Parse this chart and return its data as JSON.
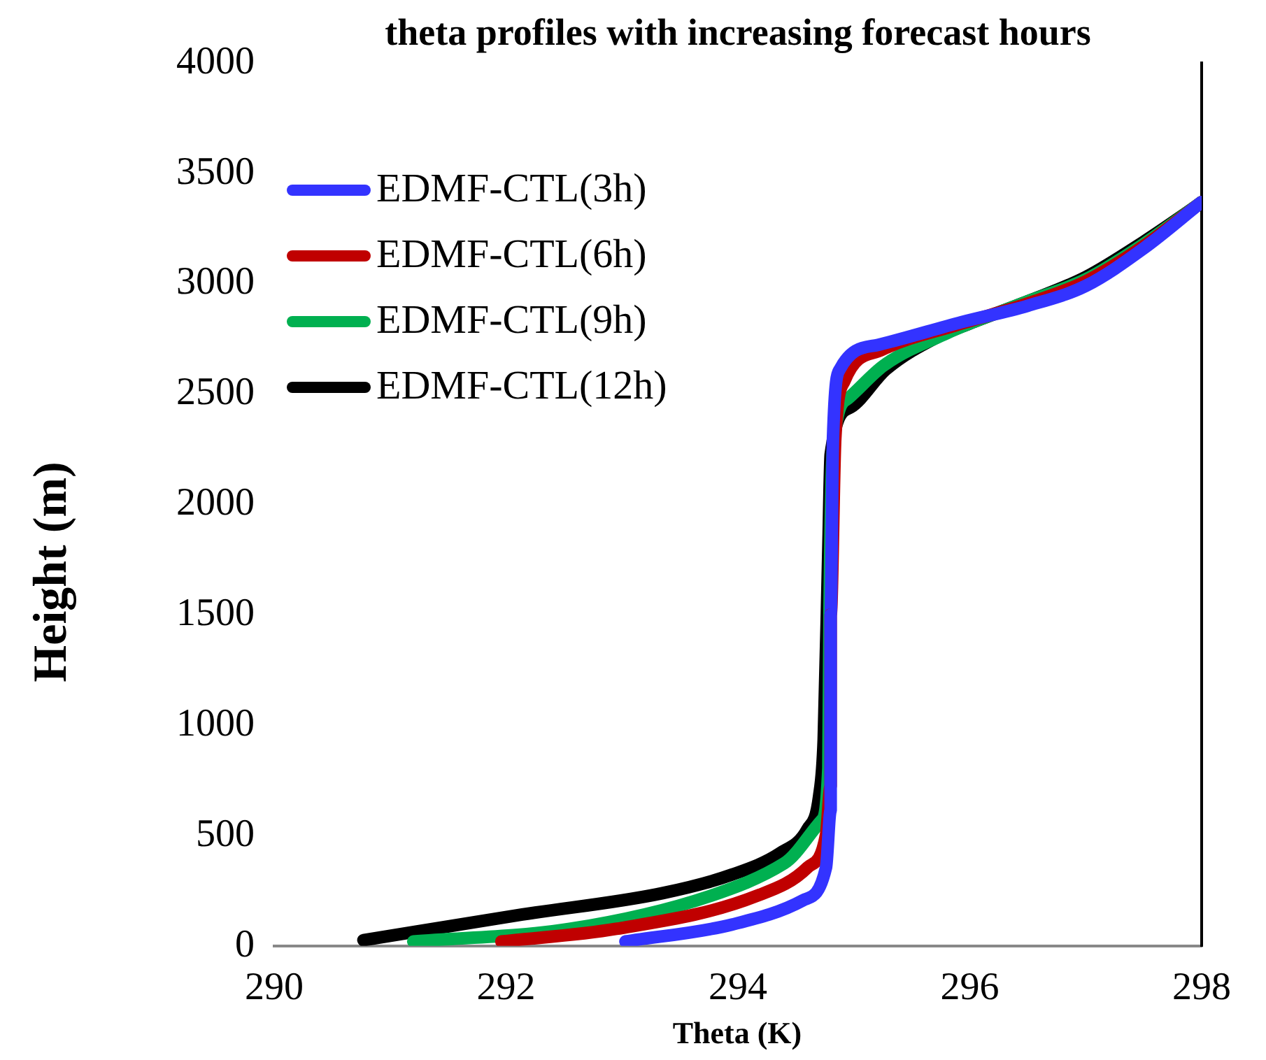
{
  "chart_data": {
    "type": "line",
    "title": "theta profiles with increasing forecast hours",
    "xlabel": "Theta (K)",
    "ylabel": "Height (m)",
    "xlim": [
      290,
      298
    ],
    "xticks": [
      290,
      292,
      294,
      296,
      298
    ],
    "ylim": [
      0,
      4000
    ],
    "yticks": [
      0,
      500,
      1000,
      1500,
      2000,
      2500,
      3000,
      3500,
      4000
    ],
    "grid": false,
    "legend": "top left",
    "marker": "none",
    "line_style": "solid",
    "series": [
      {
        "name": "EDMF-CTL(3h)",
        "color": "#3333ff",
        "x": [
          293.03,
          293.95,
          294.56,
          294.76,
          294.8,
          294.8,
          294.82,
          294.88,
          295.21,
          295.93,
          296.5,
          297.0,
          297.5,
          298.0
        ],
        "values": [
          20,
          97,
          206,
          355,
          613,
          1500,
          2300,
          2613,
          2723,
          2826,
          2900,
          2990,
          3160,
          3370
        ]
      },
      {
        "name": "EDMF-CTL(6h)",
        "color": "#c00000",
        "x": [
          291.96,
          292.95,
          294.16,
          294.6,
          294.76,
          294.8,
          294.8,
          294.84,
          294.92,
          295.24,
          295.9,
          296.5,
          297.0,
          297.5,
          298.0
        ],
        "values": [
          20,
          77,
          226,
          355,
          503,
          723,
          1500,
          2300,
          2560,
          2700,
          2815,
          2910,
          3010,
          3170,
          3370
        ]
      },
      {
        "name": "EDMF-CTL(9h)",
        "color": "#00b050",
        "x": [
          291.2,
          292.55,
          293.76,
          294.4,
          294.72,
          294.78,
          294.79,
          294.82,
          294.95,
          295.26,
          295.8,
          296.5,
          297.0,
          297.5,
          298.0
        ],
        "values": [
          20,
          77,
          226,
          374,
          568,
          806,
          1500,
          2250,
          2480,
          2630,
          2775,
          2920,
          3020,
          3180,
          3370
        ]
      },
      {
        "name": "EDMF-CTL(12h)",
        "color": "#000000",
        "x": [
          290.77,
          292.14,
          293.35,
          293.95,
          294.36,
          294.6,
          294.7,
          294.74,
          294.78,
          294.8,
          294.97,
          295.28,
          295.73,
          296.0,
          296.5,
          297.0,
          297.5,
          298.0
        ],
        "values": [
          26,
          142,
          239,
          323,
          419,
          529,
          677,
          935,
          1800,
          2226,
          2439,
          2613,
          2761,
          2820,
          2920,
          3030,
          3190,
          3368
        ]
      }
    ]
  }
}
